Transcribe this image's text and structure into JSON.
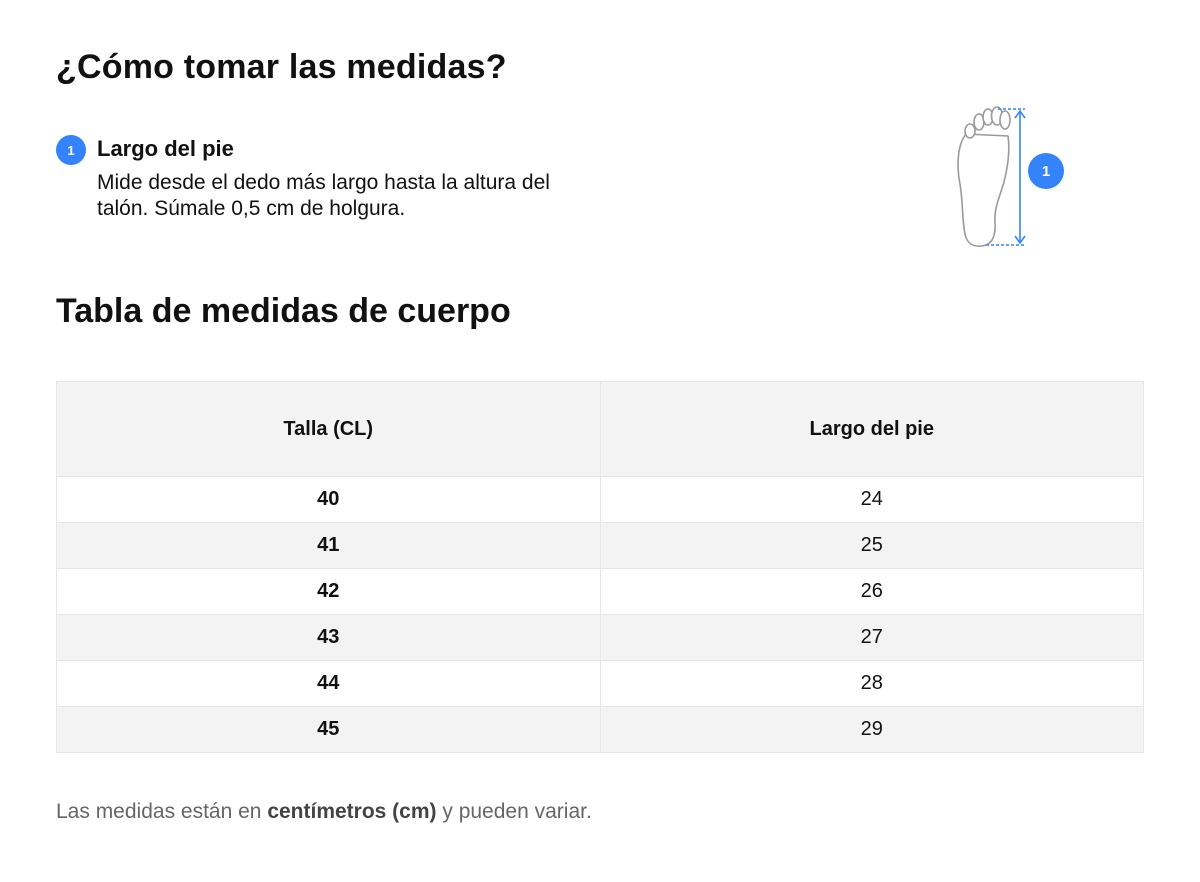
{
  "heading": "¿Cómo tomar las medidas?",
  "step": {
    "number": "1",
    "title": "Largo del pie",
    "description": "Mide desde el dedo más largo hasta la altura del talón. Súmale 0,5 cm de holgura."
  },
  "illustration": {
    "icon": "foot-measure-icon",
    "marker": "1"
  },
  "table_title": "Tabla de medidas de cuerpo",
  "table": {
    "headers": [
      "Talla (CL)",
      "Largo del pie"
    ],
    "rows": [
      [
        "40",
        "24"
      ],
      [
        "41",
        "25"
      ],
      [
        "42",
        "26"
      ],
      [
        "43",
        "27"
      ],
      [
        "44",
        "28"
      ],
      [
        "45",
        "29"
      ]
    ]
  },
  "note": {
    "before": "Las medidas están en ",
    "bold": "centímetros (cm)",
    "after": " y pueden variar."
  },
  "colors": {
    "accent": "#3483fa",
    "header_bg": "#f3f3f3",
    "note_text": "#666666"
  }
}
